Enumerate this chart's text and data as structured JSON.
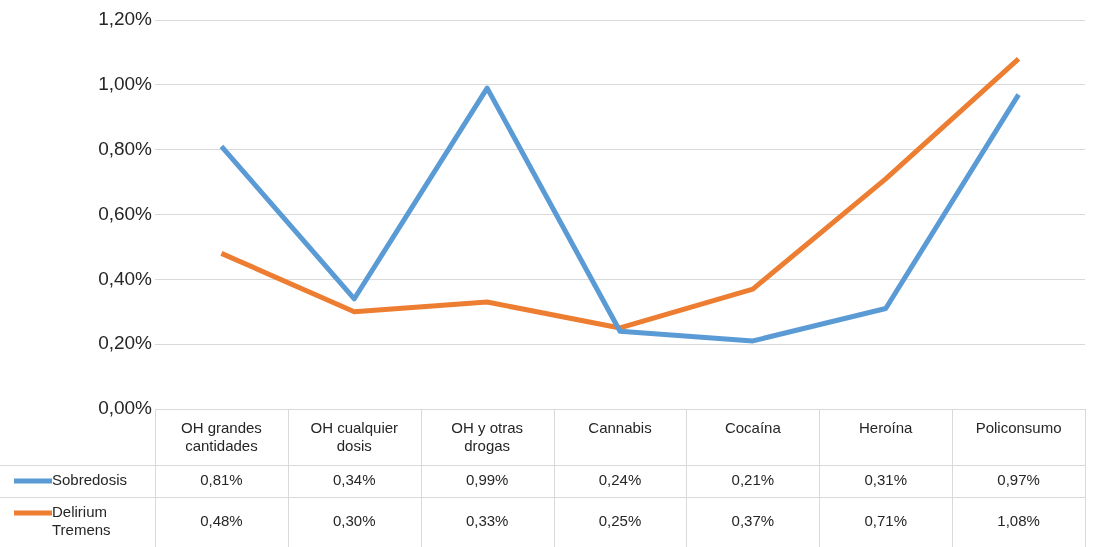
{
  "chart_data": {
    "type": "line",
    "categories": [
      "OH grandes cantidades",
      "OH cualquier dosis",
      "OH y otras drogas",
      "Cannabis",
      "Cocaína",
      "Heroína",
      "Policonsumo"
    ],
    "series": [
      {
        "name": "Sobredosis",
        "color": "#5b9bd5",
        "values": [
          0.81,
          0.34,
          0.99,
          0.24,
          0.21,
          0.31,
          0.97
        ],
        "value_labels": [
          "0,81%",
          "0,34%",
          "0,99%",
          "0,24%",
          "0,21%",
          "0,31%",
          "0,97%"
        ]
      },
      {
        "name": "Delirium Tremens",
        "color": "#ed7d31",
        "values": [
          0.48,
          0.3,
          0.33,
          0.25,
          0.37,
          0.71,
          1.08
        ],
        "value_labels": [
          "0,48%",
          "0,30%",
          "0,33%",
          "0,25%",
          "0,37%",
          "0,71%",
          "1,08%"
        ]
      }
    ],
    "ylim": [
      0,
      1.2
    ],
    "yticks": [
      {
        "value": 0,
        "label": "0,00%"
      },
      {
        "value": 0.2,
        "label": "0,20%"
      },
      {
        "value": 0.4,
        "label": "0,40%"
      },
      {
        "value": 0.6,
        "label": "0,60%"
      },
      {
        "value": 0.8,
        "label": "0,80%"
      },
      {
        "value": 1.0,
        "label": "1,00%"
      },
      {
        "value": 1.2,
        "label": "1,20%"
      }
    ],
    "grid": "y",
    "marker": "none",
    "legend": "bottom left"
  }
}
